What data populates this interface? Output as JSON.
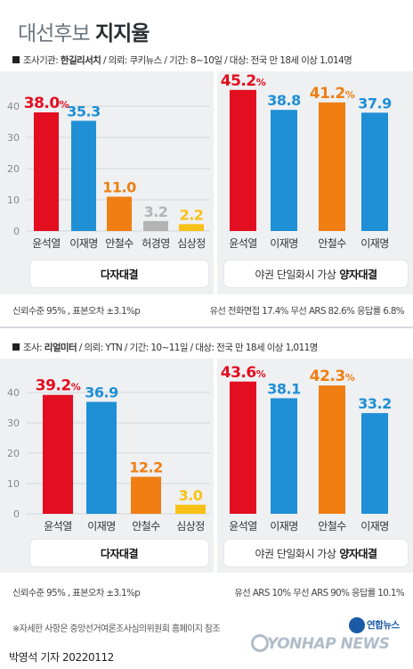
{
  "header": {
    "title_light": "대선후보",
    "title_bold": "지지율"
  },
  "surveys": [
    {
      "label": "조사기관: ",
      "firm": "한길리서치",
      "details": " / 의뢰: 쿠키뉴스 / 기간: 8~10일 / 대상: 전국 만 18세 이상 1,014명",
      "note_left": "신뢰수준 95% , 표본오차 ±3.1%p",
      "note_right": "유선 전화면접 17.4% 무선 ARS 82.6% 응답률 6.8%",
      "multi_caption": "다자대결",
      "two_caption_prefix": "야권 단일화시 가상",
      "two_caption_bold": "양자대결"
    },
    {
      "label": "조사: ",
      "firm": "리얼미터",
      "details": " / 의뢰: YTN / 기간: 10~11일 / 대상: 전국 만 18세 이상 1,011명",
      "note_left": "신뢰수준 95% , 표본오차 ±3.1%p",
      "note_right": "유선 ARS 10% 무선 ARS 90% 응답률 10.1%",
      "multi_caption": "다자대결",
      "two_caption_prefix": "야권 단일화시 가상",
      "two_caption_bold": "양자대결"
    }
  ],
  "colors": {
    "yoon": "#e30e1f",
    "lee": "#1f8fd6",
    "ahn": "#f07e12",
    "heo": "#b3b3b3",
    "sim": "#f7c116",
    "panel_bg": "#eef0f2",
    "axis_text": "#888888"
  },
  "chart_data": [
    {
      "type": "bar",
      "title": "다자대결",
      "categories": [
        "윤석열",
        "이재명",
        "안철수",
        "허경영",
        "심상정"
      ],
      "values": [
        38.0,
        35.3,
        11.0,
        3.2,
        2.2
      ],
      "value_labels": [
        "38.0%",
        "35.3",
        "11.0",
        "3.2",
        "2.2"
      ],
      "color_keys": [
        "yoon",
        "lee",
        "ahn",
        "heo",
        "sim"
      ],
      "yticks": [
        0,
        10,
        20,
        30,
        40
      ],
      "ylim": [
        0,
        45
      ]
    },
    {
      "type": "bar",
      "title": "야권 단일화시 가상 양자대결 (윤석열-이재명)",
      "categories": [
        "윤석열",
        "이재명"
      ],
      "values": [
        45.2,
        38.8
      ],
      "value_labels": [
        "45.2%",
        "38.8"
      ],
      "color_keys": [
        "yoon",
        "lee"
      ],
      "ylim": [
        0,
        45
      ]
    },
    {
      "type": "bar",
      "title": "야권 단일화시 가상 양자대결 (안철수-이재명)",
      "categories": [
        "안철수",
        "이재명"
      ],
      "values": [
        41.2,
        37.9
      ],
      "value_labels": [
        "41.2%",
        "37.9"
      ],
      "color_keys": [
        "ahn",
        "lee"
      ],
      "ylim": [
        0,
        45
      ]
    },
    {
      "type": "bar",
      "title": "다자대결",
      "categories": [
        "윤석열",
        "이재명",
        "안철수",
        "심상정"
      ],
      "values": [
        39.2,
        36.9,
        12.2,
        3.0
      ],
      "value_labels": [
        "39.2%",
        "36.9",
        "12.2",
        "3.0"
      ],
      "color_keys": [
        "yoon",
        "lee",
        "ahn",
        "sim"
      ],
      "yticks": [
        0,
        10,
        20,
        30,
        40
      ],
      "ylim": [
        0,
        45
      ]
    },
    {
      "type": "bar",
      "title": "야권 단일화시 가상 양자대결 (윤석열-이재명)",
      "categories": [
        "윤석열",
        "이재명"
      ],
      "values": [
        43.6,
        38.1
      ],
      "value_labels": [
        "43.6%",
        "38.1"
      ],
      "color_keys": [
        "yoon",
        "lee"
      ],
      "ylim": [
        0,
        45
      ]
    },
    {
      "type": "bar",
      "title": "야권 단일화시 가상 양자대결 (안철수-이재명)",
      "categories": [
        "안철수",
        "이재명"
      ],
      "values": [
        42.3,
        33.2
      ],
      "value_labels": [
        "42.3%",
        "33.2"
      ],
      "color_keys": [
        "ahn",
        "lee"
      ],
      "ylim": [
        0,
        45
      ]
    }
  ],
  "footer": {
    "footnote": "※자세한 사항은 중앙선거여론조사심의위원회 홈페이지 참조",
    "credit": "박영석 기자  20220112",
    "logo_text": "연합뉴스",
    "watermark_text": "YONHAP NEWS"
  }
}
